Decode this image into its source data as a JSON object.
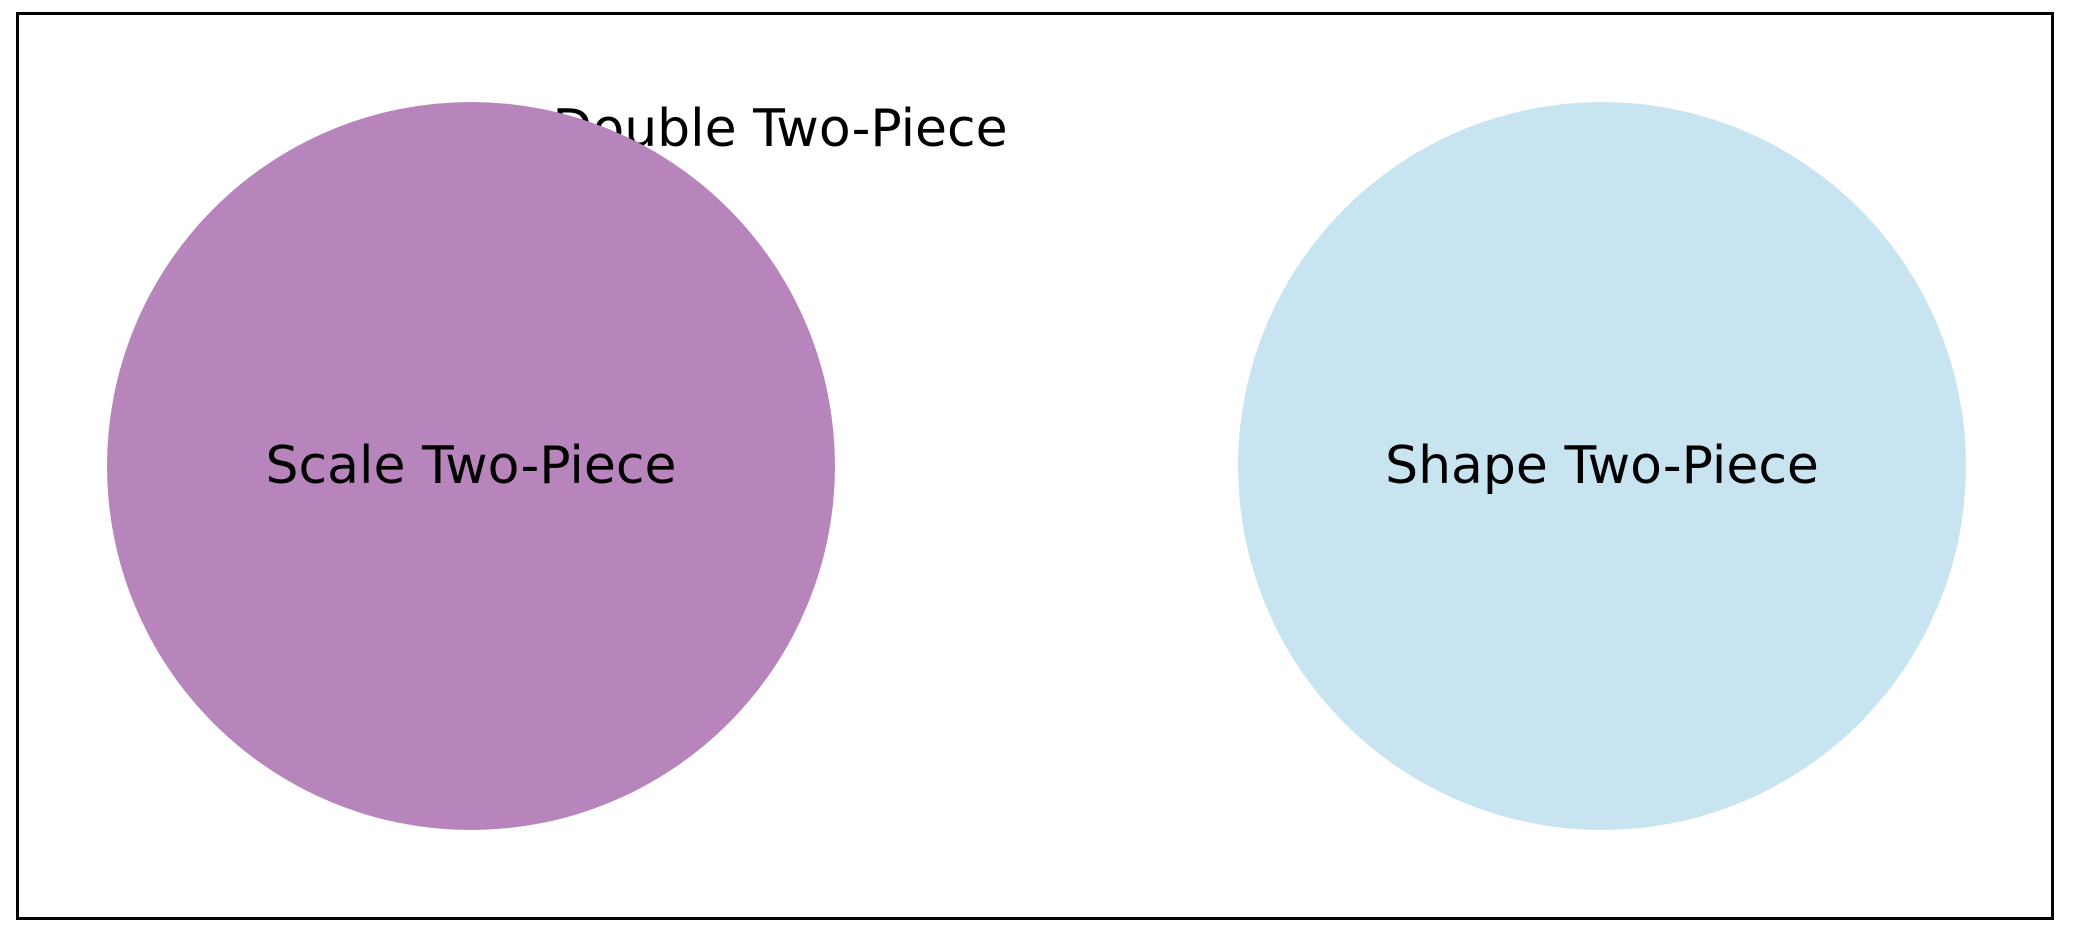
{
  "title": "Double Two-Piece",
  "sets": [
    {
      "label": "Scale Two-Piece",
      "color": "#b784bb"
    },
    {
      "label": "Shape Two-Piece",
      "color": "#c9e4f1"
    }
  ],
  "colors": {
    "border": "#000000",
    "background": "#ffffff",
    "text": "#000000"
  }
}
